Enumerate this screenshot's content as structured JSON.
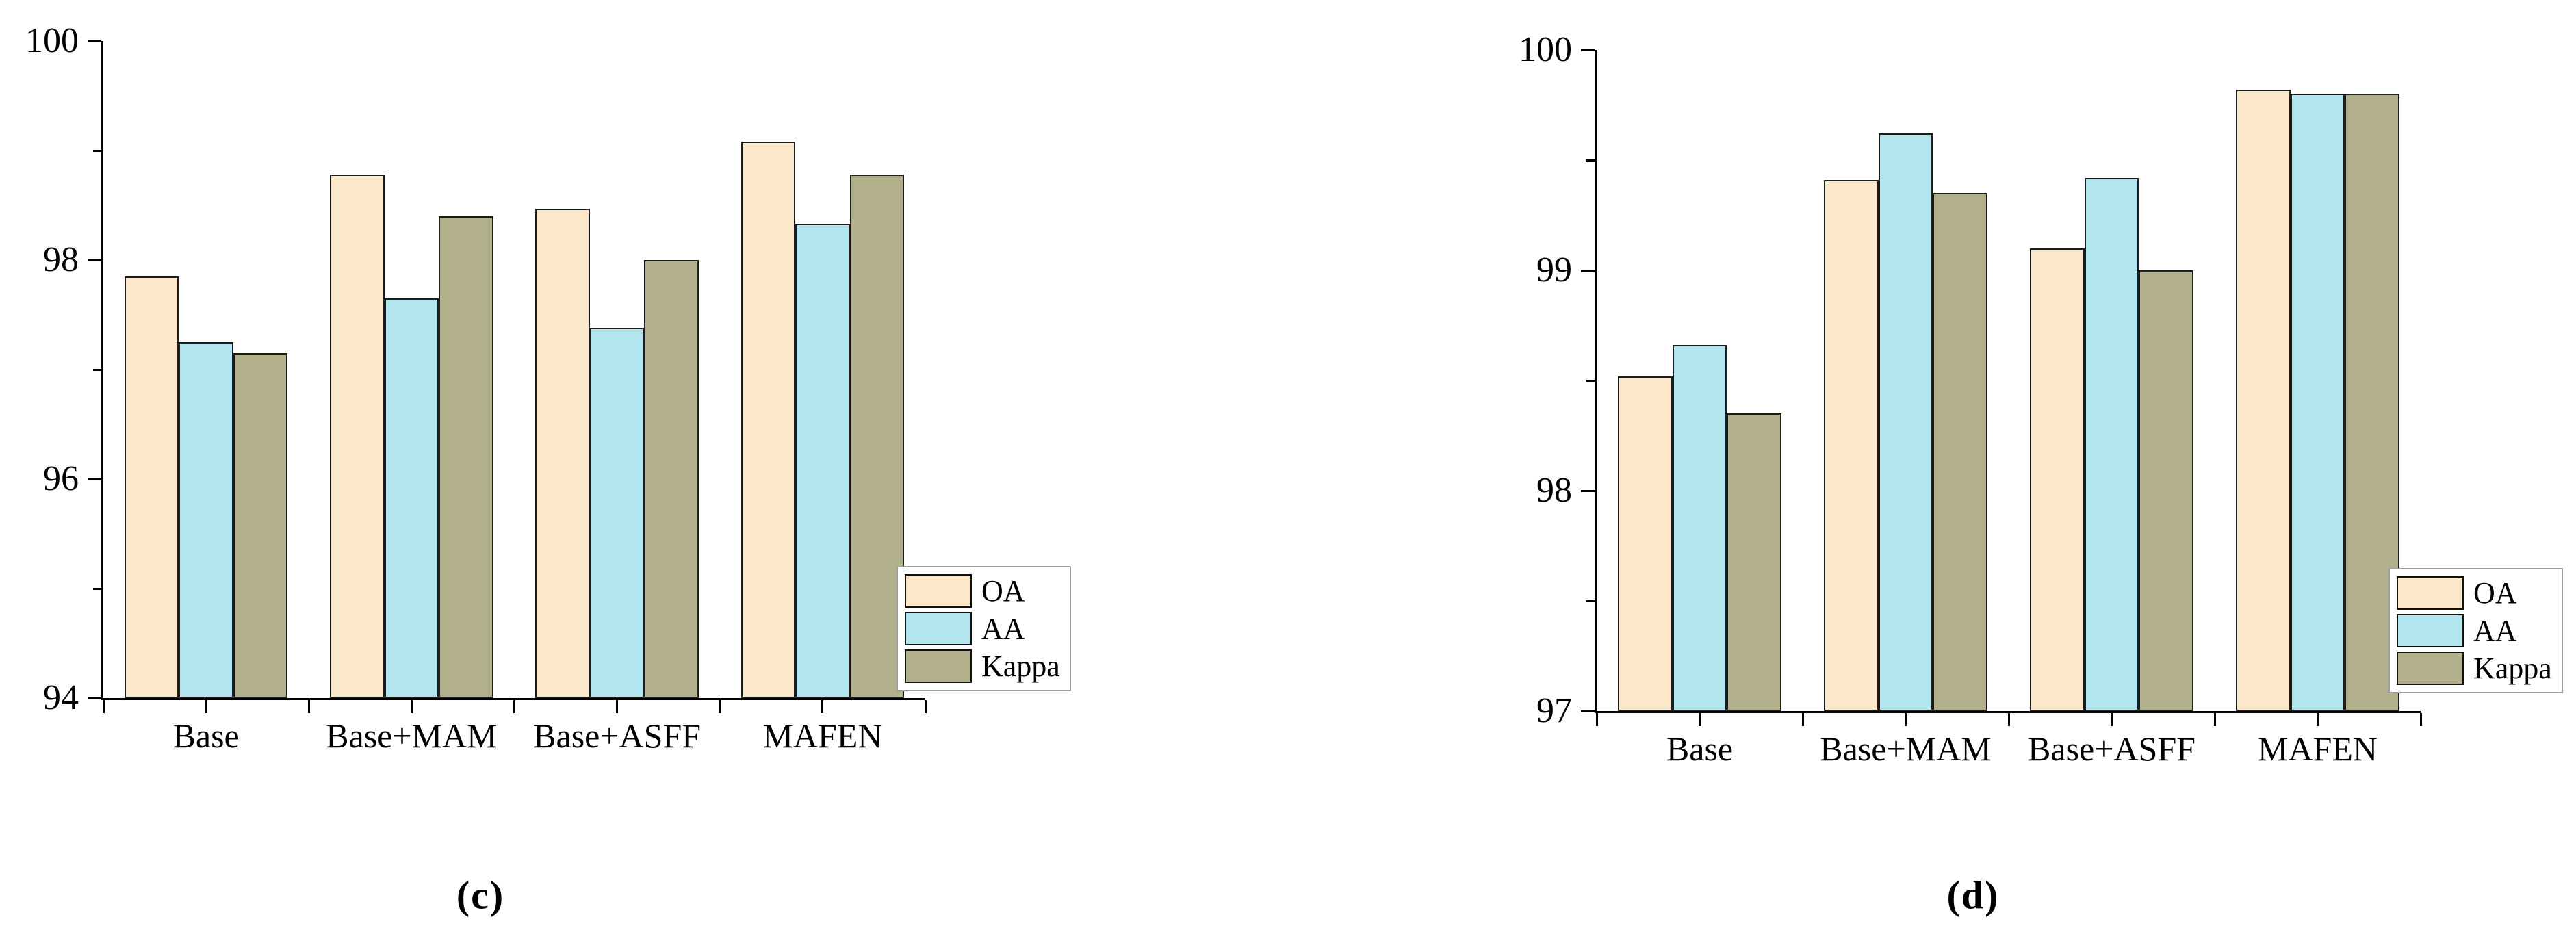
{
  "styles": {
    "axis_color": "#000000",
    "bar_border_color": "#1c1c1c",
    "legend_border_color": "#9e9e9e",
    "background_color": "#ffffff"
  },
  "chart_data": [
    {
      "type": "bar",
      "panel_label": "(c)",
      "categories": [
        "Base",
        "Base+MAM",
        "Base+ASFF",
        "MAFEN"
      ],
      "series": [
        {
          "name": "OA",
          "color": "#fbe7c9",
          "values": [
            97.85,
            98.78,
            98.47,
            99.08
          ]
        },
        {
          "name": "AA",
          "color": "#b3e5ee",
          "values": [
            97.25,
            97.65,
            97.38,
            98.33
          ]
        },
        {
          "name": "Kappa",
          "color": "#b1b08a",
          "values": [
            97.15,
            98.4,
            98.0,
            98.78
          ]
        }
      ],
      "ylim": [
        94,
        100
      ],
      "yticks_major": [
        94,
        96,
        98,
        100
      ],
      "yticks_minor": [
        95,
        97,
        99
      ],
      "xlabel": "",
      "ylabel": "",
      "title": "",
      "grid": false,
      "legend_entries": [
        "OA",
        "AA",
        "Kappa"
      ],
      "legend_position": "bottom-right"
    },
    {
      "type": "bar",
      "panel_label": "(d)",
      "categories": [
        "Base",
        "Base+MAM",
        "Base+ASFF",
        "MAFEN"
      ],
      "series": [
        {
          "name": "OA",
          "color": "#fbe7c9",
          "values": [
            98.52,
            99.41,
            99.1,
            99.82
          ]
        },
        {
          "name": "AA",
          "color": "#b3e5ee",
          "values": [
            98.66,
            99.62,
            99.42,
            99.8
          ]
        },
        {
          "name": "Kappa",
          "color": "#b1b08a",
          "values": [
            98.35,
            99.35,
            99.0,
            99.8
          ]
        }
      ],
      "ylim": [
        97,
        100
      ],
      "yticks_major": [
        97,
        98,
        99,
        100
      ],
      "yticks_minor": [
        97.5,
        98.5,
        99.5
      ],
      "xlabel": "",
      "ylabel": "",
      "title": "",
      "grid": false,
      "legend_entries": [
        "OA",
        "AA",
        "Kappa"
      ],
      "legend_position": "bottom-right"
    }
  ]
}
